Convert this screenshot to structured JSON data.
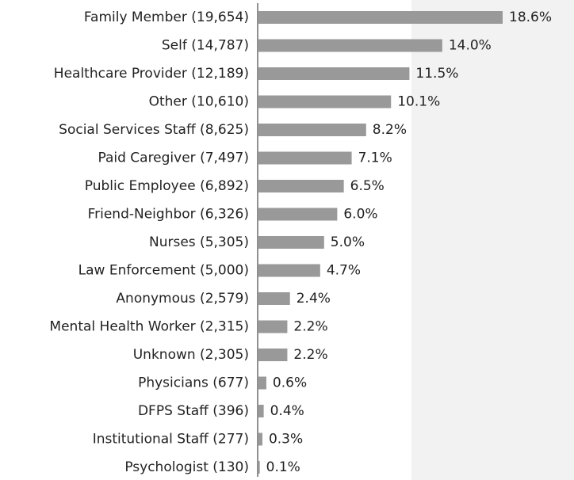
{
  "chart_data": {
    "type": "bar",
    "orientation": "horizontal",
    "color": "#999999",
    "categories": [
      "Family Member (19,654)",
      "Self (14,787)",
      "Healthcare Provider (12,189)",
      "Other (10,610)",
      "Social Services Staff (8,625)",
      "Paid Caregiver (7,497)",
      "Public Employee (6,892)",
      "Friend-Neighbor (6,326)",
      "Nurses (5,305)",
      "Law Enforcement (5,000)",
      "Anonymous (2,579)",
      "Mental Health Worker (2,315)",
      "Unknown (2,305)",
      "Physicians (677)",
      "DFPS Staff (396)",
      "Institutional Staff (277)",
      "Psychologist (130)"
    ],
    "values": [
      18.6,
      14.0,
      11.5,
      10.1,
      8.2,
      7.1,
      6.5,
      6.0,
      5.0,
      4.7,
      2.4,
      2.2,
      2.2,
      0.6,
      0.4,
      0.3,
      0.1
    ],
    "value_labels": [
      "18.6%",
      "14.0%",
      "11.5%",
      "10.1%",
      "8.2%",
      "7.1%",
      "6.5%",
      "6.0%",
      "5.0%",
      "4.7%",
      "2.4%",
      "2.2%",
      "2.2%",
      "0.6%",
      "0.4%",
      "0.3%",
      "0.1%"
    ]
  }
}
